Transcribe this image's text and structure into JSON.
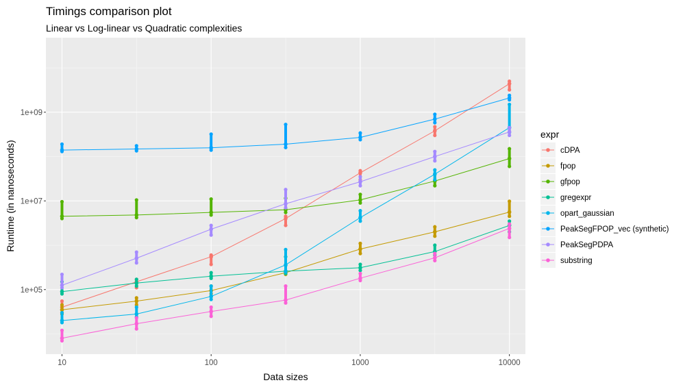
{
  "chart_data": {
    "type": "line",
    "title": "Timings comparison plot",
    "subtitle": "Linear vs Log-linear vs Quadratic complexities",
    "xlabel": "Data sizes",
    "ylabel": "Runtime (in nanoseconds)",
    "x_scale": "log10",
    "y_scale": "log10",
    "xlim": [
      7.8,
      12800
    ],
    "ylim": [
      3500,
      48000000000
    ],
    "x_ticks": [
      10,
      100,
      1000,
      10000
    ],
    "x_tick_labels": [
      "10",
      "100",
      "1000",
      "10000"
    ],
    "y_ticks": [
      100000,
      10000000,
      1000000000
    ],
    "y_tick_labels": [
      "1e+05",
      "1e+07",
      "1e+09"
    ],
    "grid": true,
    "legend_title": "expr",
    "legend_position": "right",
    "x": [
      10,
      31.6,
      100,
      316,
      1000,
      3162,
      10000
    ],
    "series": [
      {
        "name": "cDPA",
        "color": "#F8766D",
        "values": [
          40000,
          150000,
          550000,
          4000000,
          43000000,
          380000000,
          4400000000
        ],
        "spread": [
          [
            30000,
            55000
          ],
          [
            110000,
            170000
          ],
          [
            370000,
            600000
          ],
          [
            2800000,
            4500000
          ],
          [
            30000000,
            48000000
          ],
          [
            300000000,
            470000000
          ],
          [
            3200000000,
            5000000000
          ]
        ]
      },
      {
        "name": "fpop",
        "color": "#C49A00",
        "values": [
          35000,
          55000,
          95000,
          240000,
          820000,
          2000000,
          5600000
        ],
        "spread": [
          [
            28000,
            45000
          ],
          [
            45000,
            65000
          ],
          [
            80000,
            120000
          ],
          [
            220000,
            350000
          ],
          [
            650000,
            1100000
          ],
          [
            1600000,
            2600000
          ],
          [
            4500000,
            9800000
          ]
        ]
      },
      {
        "name": "gfpop",
        "color": "#53B400",
        "values": [
          4500000,
          4800000,
          5500000,
          6300000,
          10500000,
          28000000,
          90000000
        ],
        "spread": [
          [
            4000000,
            9600000
          ],
          [
            4200000,
            10500000
          ],
          [
            4800000,
            11000000
          ],
          [
            5500000,
            11500000
          ],
          [
            9000000,
            14000000
          ],
          [
            22000000,
            40000000
          ],
          [
            60000000,
            150000000
          ]
        ]
      },
      {
        "name": "gregexpr",
        "color": "#00C094",
        "values": [
          90000,
          140000,
          200000,
          260000,
          310000,
          720000,
          2800000
        ],
        "spread": [
          [
            80000,
            150000
          ],
          [
            120000,
            170000
          ],
          [
            180000,
            240000
          ],
          [
            230000,
            550000
          ],
          [
            270000,
            370000
          ],
          [
            600000,
            1000000
          ],
          [
            2000000,
            3500000
          ]
        ]
      },
      {
        "name": "opart_gaussian",
        "color": "#00B6EB",
        "values": [
          20000,
          28000,
          70000,
          360000,
          4200000,
          40000000,
          450000000
        ],
        "spread": [
          [
            18000,
            30000
          ],
          [
            24000,
            40000
          ],
          [
            60000,
            120000
          ],
          [
            250000,
            800000
          ],
          [
            3500000,
            6000000
          ],
          [
            30000000,
            50000000
          ],
          [
            350000000,
            1500000000
          ]
        ]
      },
      {
        "name": "PeakSegFPOP_vec (synthetic)",
        "color": "#06A4FF",
        "values": [
          140000000,
          148000000,
          158000000,
          190000000,
          270000000,
          700000000,
          2100000000
        ],
        "spread": [
          [
            130000000,
            190000000
          ],
          [
            135000000,
            175000000
          ],
          [
            140000000,
            320000000
          ],
          [
            160000000,
            530000000
          ],
          [
            240000000,
            340000000
          ],
          [
            580000000,
            900000000
          ],
          [
            1900000000,
            2400000000
          ]
        ]
      },
      {
        "name": "PeakSegPDPA",
        "color": "#A58AFF",
        "values": [
          125000,
          510000,
          2300000,
          8600000,
          27000000,
          100000000,
          360000000
        ],
        "spread": [
          [
            110000,
            220000
          ],
          [
            400000,
            700000
          ],
          [
            1700000,
            2800000
          ],
          [
            7000000,
            18000000
          ],
          [
            22000000,
            35000000
          ],
          [
            80000000,
            130000000
          ],
          [
            300000000,
            450000000
          ]
        ]
      },
      {
        "name": "substring",
        "color": "#FB61D7",
        "values": [
          8000,
          17000,
          32000,
          58000,
          180000,
          520000,
          2400000
        ],
        "spread": [
          [
            7000,
            12000
          ],
          [
            13000,
            23000
          ],
          [
            25000,
            40000
          ],
          [
            50000,
            120000
          ],
          [
            160000,
            230000
          ],
          [
            450000,
            650000
          ],
          [
            1500000,
            3000000
          ]
        ]
      }
    ]
  }
}
